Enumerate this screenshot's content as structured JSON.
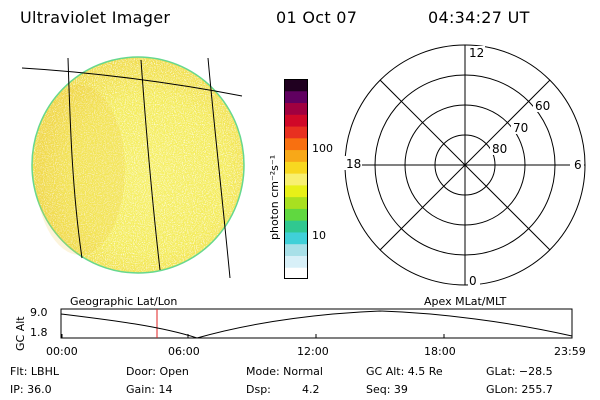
{
  "header": {
    "instrument": "Ultraviolet Imager",
    "date": "01 Oct 07",
    "time": "04:34:27 UT"
  },
  "colorbar": {
    "unit_label": "photon cm⁻²s⁻¹",
    "ticks": [
      "100",
      "10"
    ],
    "colors": [
      "#ffffff",
      "#d8f0f8",
      "#a8e0e8",
      "#40d0d8",
      "#30c890",
      "#60d840",
      "#a8e020",
      "#e8f018",
      "#f8f070",
      "#f8d820",
      "#f8a818",
      "#f87010",
      "#e83020",
      "#d00828",
      "#a00040",
      "#600060",
      "#200020"
    ]
  },
  "geo_panel": {
    "label": "Geographic Lat/Lon"
  },
  "polar_panel": {
    "label": "Apex MLat/MLT",
    "mlt_labels": {
      "top": "12",
      "right": "6",
      "bottom": "0",
      "left": "18"
    },
    "lat_labels": [
      "60",
      "70",
      "80"
    ]
  },
  "altitude_plot": {
    "ylabel": "GC Alt",
    "yticks": [
      "9.0",
      "1.8"
    ],
    "xticks": [
      "00:00",
      "06:00",
      "12:00",
      "18:00",
      "23:59"
    ],
    "current_time_marker": "04:34",
    "marker_color": "#e02020"
  },
  "info": {
    "filter": "Flt: LBHL",
    "ip": "IP: 36.0",
    "door": "Door: Open",
    "gain": "Gain: 14",
    "mode": "Mode: Normal",
    "dsp_label": "Dsp:",
    "dsp_value": "4.2",
    "gc_alt": "GC Alt: 4.5 Re",
    "seq": "Seq: 39",
    "glat": "GLat: −28.5",
    "glon": "GLon: 255.7"
  }
}
